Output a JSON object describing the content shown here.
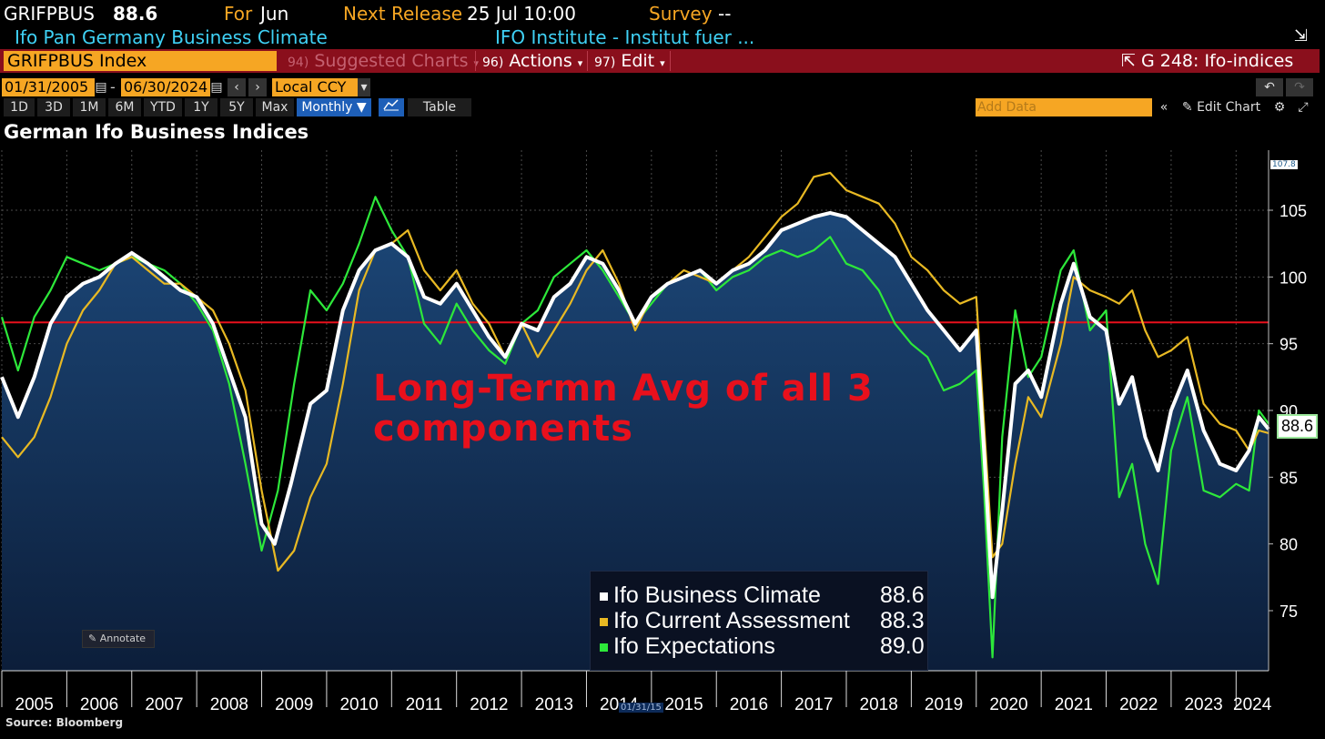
{
  "header": {
    "ticker": "GRIFPBUS",
    "last_value": "88.6",
    "for_label": "For",
    "for_value": "Jun",
    "next_release_label": "Next Release",
    "next_release_value": "25 Jul 10:00",
    "survey_label": "Survey",
    "survey_value": "--",
    "description": "Ifo Pan Germany Business Climate",
    "source_name": "IFO Institute - Institut fuer ..."
  },
  "toolbar": {
    "security": "GRIFPBUS Index",
    "suggested_num": "94)",
    "suggested": "Suggested Charts",
    "actions_num": "96)",
    "actions": "Actions",
    "edit_num": "97)",
    "edit": "Edit",
    "chart_name": "G 248: Ifo-indices"
  },
  "range": {
    "start": "01/31/2005",
    "end": "06/30/2024",
    "currency": "Local CCY"
  },
  "periods": [
    "1D",
    "3D",
    "1M",
    "6M",
    "YTD",
    "1Y",
    "5Y",
    "Max"
  ],
  "frequency": "Monthly",
  "table_label": "Table",
  "add_data_placeholder": "Add Data",
  "edit_chart_label": "Edit Chart",
  "annotate_label": "Annotate",
  "source": "Source: Bloomberg",
  "colors": {
    "climate": "#ffffff",
    "current": "#e8b923",
    "expectations": "#2de83a",
    "avg_line": "#e8101c",
    "bg_top": "#000000",
    "area": "#143055"
  },
  "chart_data": {
    "type": "line",
    "title": "German Ifo Business Indices",
    "annotation": [
      "Long-Termn Avg of all 3",
      "components"
    ],
    "reference_line": 96.6,
    "ylim": [
      70.5,
      109.5
    ],
    "yticks": [
      75,
      80,
      85,
      90,
      95,
      100,
      105
    ],
    "xlim": [
      2005.0,
      2024.5
    ],
    "xticks": [
      2005,
      2006,
      2007,
      2008,
      2009,
      2010,
      2011,
      2012,
      2013,
      2014,
      2015,
      2016,
      2017,
      2018,
      2019,
      2020,
      2021,
      2022,
      2023,
      2024
    ],
    "axis_high_label": "107.8",
    "last_label": "88.6",
    "cursor_date": "01/31/15",
    "grid": true,
    "legend_position": "bottom-center",
    "series": [
      {
        "name": "Ifo Business Climate",
        "last": "88.6",
        "points": [
          [
            2005.0,
            92.5
          ],
          [
            2005.25,
            89.5
          ],
          [
            2005.5,
            92.5
          ],
          [
            2005.75,
            96.5
          ],
          [
            2006.0,
            98.5
          ],
          [
            2006.25,
            99.5
          ],
          [
            2006.5,
            100.0
          ],
          [
            2006.75,
            101.0
          ],
          [
            2007.0,
            101.8
          ],
          [
            2007.25,
            101.0
          ],
          [
            2007.5,
            100.0
          ],
          [
            2007.75,
            99.0
          ],
          [
            2008.0,
            98.5
          ],
          [
            2008.25,
            96.5
          ],
          [
            2008.5,
            93.0
          ],
          [
            2008.75,
            89.5
          ],
          [
            2009.0,
            81.5
          ],
          [
            2009.2,
            80.0
          ],
          [
            2009.45,
            84.5
          ],
          [
            2009.75,
            90.5
          ],
          [
            2010.0,
            91.5
          ],
          [
            2010.25,
            97.5
          ],
          [
            2010.5,
            100.5
          ],
          [
            2010.75,
            102.0
          ],
          [
            2011.0,
            102.5
          ],
          [
            2011.25,
            101.5
          ],
          [
            2011.5,
            98.5
          ],
          [
            2011.75,
            98.0
          ],
          [
            2012.0,
            99.5
          ],
          [
            2012.25,
            97.5
          ],
          [
            2012.5,
            95.5
          ],
          [
            2012.75,
            94.0
          ],
          [
            2013.0,
            96.5
          ],
          [
            2013.25,
            96.0
          ],
          [
            2013.5,
            98.5
          ],
          [
            2013.75,
            99.5
          ],
          [
            2014.0,
            101.5
          ],
          [
            2014.25,
            101.0
          ],
          [
            2014.5,
            99.0
          ],
          [
            2014.75,
            96.5
          ],
          [
            2015.0,
            98.5
          ],
          [
            2015.25,
            99.5
          ],
          [
            2015.5,
            100.0
          ],
          [
            2015.75,
            100.5
          ],
          [
            2016.0,
            99.5
          ],
          [
            2016.25,
            100.5
          ],
          [
            2016.5,
            101.0
          ],
          [
            2016.75,
            102.0
          ],
          [
            2017.0,
            103.5
          ],
          [
            2017.25,
            104.0
          ],
          [
            2017.5,
            104.5
          ],
          [
            2017.75,
            104.8
          ],
          [
            2018.0,
            104.5
          ],
          [
            2018.25,
            103.5
          ],
          [
            2018.5,
            102.5
          ],
          [
            2018.75,
            101.5
          ],
          [
            2019.0,
            99.5
          ],
          [
            2019.25,
            97.5
          ],
          [
            2019.5,
            96.0
          ],
          [
            2019.75,
            94.5
          ],
          [
            2020.0,
            96.0
          ],
          [
            2020.12,
            87.0
          ],
          [
            2020.25,
            76.0
          ],
          [
            2020.4,
            82.5
          ],
          [
            2020.6,
            92.0
          ],
          [
            2020.8,
            93.0
          ],
          [
            2021.0,
            91.0
          ],
          [
            2021.3,
            98.0
          ],
          [
            2021.5,
            101.0
          ],
          [
            2021.75,
            97.0
          ],
          [
            2022.0,
            96.0
          ],
          [
            2022.2,
            90.5
          ],
          [
            2022.4,
            92.5
          ],
          [
            2022.6,
            88.0
          ],
          [
            2022.8,
            85.5
          ],
          [
            2023.0,
            90.0
          ],
          [
            2023.25,
            93.0
          ],
          [
            2023.5,
            88.5
          ],
          [
            2023.75,
            86.0
          ],
          [
            2024.0,
            85.5
          ],
          [
            2024.2,
            87.0
          ],
          [
            2024.35,
            89.5
          ],
          [
            2024.5,
            88.6
          ]
        ]
      },
      {
        "name": "Ifo Current Assessment",
        "last": "88.3",
        "points": [
          [
            2005.0,
            88.0
          ],
          [
            2005.25,
            86.5
          ],
          [
            2005.5,
            88.0
          ],
          [
            2005.75,
            91.0
          ],
          [
            2006.0,
            95.0
          ],
          [
            2006.25,
            97.5
          ],
          [
            2006.5,
            99.0
          ],
          [
            2006.75,
            101.0
          ],
          [
            2007.0,
            101.5
          ],
          [
            2007.25,
            100.5
          ],
          [
            2007.5,
            99.5
          ],
          [
            2007.75,
            99.5
          ],
          [
            2008.0,
            98.5
          ],
          [
            2008.25,
            97.5
          ],
          [
            2008.5,
            95.0
          ],
          [
            2008.75,
            91.5
          ],
          [
            2009.0,
            84.0
          ],
          [
            2009.25,
            78.0
          ],
          [
            2009.5,
            79.5
          ],
          [
            2009.75,
            83.5
          ],
          [
            2010.0,
            86.0
          ],
          [
            2010.25,
            92.0
          ],
          [
            2010.5,
            99.0
          ],
          [
            2010.75,
            102.0
          ],
          [
            2011.0,
            102.5
          ],
          [
            2011.25,
            103.5
          ],
          [
            2011.5,
            100.5
          ],
          [
            2011.75,
            99.0
          ],
          [
            2012.0,
            100.5
          ],
          [
            2012.25,
            98.0
          ],
          [
            2012.5,
            96.5
          ],
          [
            2012.75,
            94.0
          ],
          [
            2013.0,
            96.5
          ],
          [
            2013.25,
            94.0
          ],
          [
            2013.5,
            96.0
          ],
          [
            2013.75,
            98.0
          ],
          [
            2014.0,
            100.5
          ],
          [
            2014.25,
            102.0
          ],
          [
            2014.5,
            99.5
          ],
          [
            2014.75,
            96.0
          ],
          [
            2015.0,
            98.5
          ],
          [
            2015.25,
            99.5
          ],
          [
            2015.5,
            100.5
          ],
          [
            2015.75,
            100.0
          ],
          [
            2016.0,
            99.5
          ],
          [
            2016.25,
            100.5
          ],
          [
            2016.5,
            101.5
          ],
          [
            2016.75,
            103.0
          ],
          [
            2017.0,
            104.5
          ],
          [
            2017.25,
            105.5
          ],
          [
            2017.5,
            107.5
          ],
          [
            2017.75,
            107.8
          ],
          [
            2018.0,
            106.5
          ],
          [
            2018.25,
            106.0
          ],
          [
            2018.5,
            105.5
          ],
          [
            2018.75,
            104.0
          ],
          [
            2019.0,
            101.5
          ],
          [
            2019.25,
            100.5
          ],
          [
            2019.5,
            99.0
          ],
          [
            2019.75,
            98.0
          ],
          [
            2020.0,
            98.5
          ],
          [
            2020.12,
            89.0
          ],
          [
            2020.25,
            79.0
          ],
          [
            2020.4,
            80.0
          ],
          [
            2020.6,
            86.0
          ],
          [
            2020.8,
            91.0
          ],
          [
            2021.0,
            89.5
          ],
          [
            2021.3,
            95.0
          ],
          [
            2021.5,
            100.0
          ],
          [
            2021.75,
            99.0
          ],
          [
            2022.0,
            98.5
          ],
          [
            2022.2,
            98.0
          ],
          [
            2022.4,
            99.0
          ],
          [
            2022.6,
            96.0
          ],
          [
            2022.8,
            94.0
          ],
          [
            2023.0,
            94.5
          ],
          [
            2023.25,
            95.5
          ],
          [
            2023.5,
            90.5
          ],
          [
            2023.75,
            89.0
          ],
          [
            2024.0,
            88.5
          ],
          [
            2024.2,
            87.0
          ],
          [
            2024.35,
            88.5
          ],
          [
            2024.5,
            88.3
          ]
        ]
      },
      {
        "name": "Ifo Expectations",
        "last": "89.0",
        "points": [
          [
            2005.0,
            97.0
          ],
          [
            2005.25,
            93.0
          ],
          [
            2005.5,
            97.0
          ],
          [
            2005.75,
            99.0
          ],
          [
            2006.0,
            101.5
          ],
          [
            2006.25,
            101.0
          ],
          [
            2006.5,
            100.5
          ],
          [
            2006.75,
            101.0
          ],
          [
            2007.0,
            101.5
          ],
          [
            2007.25,
            101.0
          ],
          [
            2007.5,
            100.5
          ],
          [
            2007.75,
            99.5
          ],
          [
            2008.0,
            98.0
          ],
          [
            2008.25,
            96.0
          ],
          [
            2008.5,
            92.0
          ],
          [
            2008.75,
            86.0
          ],
          [
            2009.0,
            79.5
          ],
          [
            2009.25,
            84.0
          ],
          [
            2009.5,
            92.0
          ],
          [
            2009.75,
            99.0
          ],
          [
            2010.0,
            97.5
          ],
          [
            2010.25,
            99.5
          ],
          [
            2010.5,
            102.5
          ],
          [
            2010.75,
            106.0
          ],
          [
            2011.0,
            103.5
          ],
          [
            2011.25,
            101.5
          ],
          [
            2011.5,
            96.5
          ],
          [
            2011.75,
            95.0
          ],
          [
            2012.0,
            98.0
          ],
          [
            2012.25,
            96.0
          ],
          [
            2012.5,
            94.5
          ],
          [
            2012.75,
            93.5
          ],
          [
            2013.0,
            96.5
          ],
          [
            2013.25,
            97.5
          ],
          [
            2013.5,
            100.0
          ],
          [
            2013.75,
            101.0
          ],
          [
            2014.0,
            102.0
          ],
          [
            2014.25,
            100.5
          ],
          [
            2014.5,
            98.5
          ],
          [
            2014.75,
            96.5
          ],
          [
            2015.0,
            98.0
          ],
          [
            2015.25,
            99.5
          ],
          [
            2015.5,
            100.0
          ],
          [
            2015.75,
            100.5
          ],
          [
            2016.0,
            99.0
          ],
          [
            2016.25,
            100.0
          ],
          [
            2016.5,
            100.5
          ],
          [
            2016.75,
            101.5
          ],
          [
            2017.0,
            102.0
          ],
          [
            2017.25,
            101.5
          ],
          [
            2017.5,
            102.0
          ],
          [
            2017.75,
            103.0
          ],
          [
            2018.0,
            101.0
          ],
          [
            2018.25,
            100.5
          ],
          [
            2018.5,
            99.0
          ],
          [
            2018.75,
            96.5
          ],
          [
            2019.0,
            95.0
          ],
          [
            2019.25,
            94.0
          ],
          [
            2019.5,
            91.5
          ],
          [
            2019.75,
            92.0
          ],
          [
            2020.0,
            93.0
          ],
          [
            2020.12,
            84.0
          ],
          [
            2020.25,
            71.5
          ],
          [
            2020.4,
            88.0
          ],
          [
            2020.6,
            97.5
          ],
          [
            2020.8,
            92.5
          ],
          [
            2021.0,
            94.0
          ],
          [
            2021.3,
            100.5
          ],
          [
            2021.5,
            102.0
          ],
          [
            2021.75,
            96.0
          ],
          [
            2022.0,
            97.5
          ],
          [
            2022.2,
            83.5
          ],
          [
            2022.4,
            86.0
          ],
          [
            2022.6,
            80.0
          ],
          [
            2022.8,
            77.0
          ],
          [
            2023.0,
            87.0
          ],
          [
            2023.25,
            91.0
          ],
          [
            2023.5,
            84.0
          ],
          [
            2023.75,
            83.5
          ],
          [
            2024.0,
            84.5
          ],
          [
            2024.2,
            84.0
          ],
          [
            2024.35,
            90.0
          ],
          [
            2024.5,
            89.0
          ]
        ]
      }
    ]
  }
}
